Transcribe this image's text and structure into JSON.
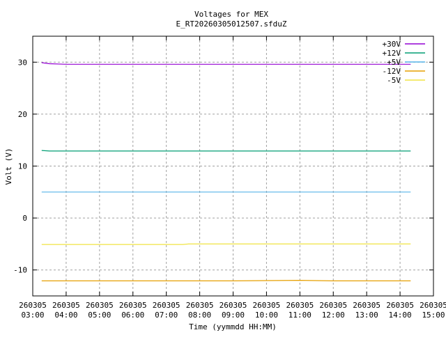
{
  "chart_data": {
    "type": "line",
    "title": "Voltages for MEX",
    "subtitle": "E_RT20260305012507.sfduZ",
    "xlabel": "Time (yymmdd HH:MM)",
    "ylabel": "Volt (V)",
    "xlim": [
      "260305 03:00",
      "260305 15:00"
    ],
    "ylim": [
      -15,
      35
    ],
    "x_ticks": [
      {
        "date": "260305",
        "time": "03:00"
      },
      {
        "date": "260305",
        "time": "04:00"
      },
      {
        "date": "260305",
        "time": "05:00"
      },
      {
        "date": "260305",
        "time": "06:00"
      },
      {
        "date": "260305",
        "time": "07:00"
      },
      {
        "date": "260305",
        "time": "08:00"
      },
      {
        "date": "260305",
        "time": "09:00"
      },
      {
        "date": "260305",
        "time": "10:00"
      },
      {
        "date": "260305",
        "time": "11:00"
      },
      {
        "date": "260305",
        "time": "12:00"
      },
      {
        "date": "260305",
        "time": "13:00"
      },
      {
        "date": "260305",
        "time": "14:00"
      },
      {
        "date": "260305",
        "time": "15:00"
      }
    ],
    "y_ticks": [
      "-10",
      "0",
      "10",
      "20",
      "30"
    ],
    "grid": true,
    "legend_position": "top-right",
    "series": [
      {
        "name": "+30V",
        "color": "#9400d3",
        "x": [
          "03:16",
          "03:30",
          "04:00",
          "06:00",
          "08:00",
          "10:00",
          "12:00",
          "14:19"
        ],
        "y": [
          29.9,
          29.7,
          29.6,
          29.6,
          29.6,
          29.6,
          29.6,
          29.6
        ]
      },
      {
        "name": "+12V",
        "color": "#009e73",
        "x": [
          "03:16",
          "03:30",
          "06:00",
          "09:00",
          "12:00",
          "14:19"
        ],
        "y": [
          13.0,
          12.9,
          12.9,
          12.9,
          12.9,
          12.9
        ]
      },
      {
        "name": "+5V",
        "color": "#56b4e9",
        "x": [
          "03:16",
          "06:00",
          "09:00",
          "12:00",
          "14:19"
        ],
        "y": [
          5.0,
          5.0,
          5.0,
          5.0,
          5.0
        ]
      },
      {
        "name": "-12V",
        "color": "#e69f00",
        "x": [
          "03:16",
          "06:00",
          "09:00",
          "11:00",
          "12:00",
          "14:19"
        ],
        "y": [
          -12.1,
          -12.1,
          -12.1,
          -12.0,
          -12.1,
          -12.1
        ]
      },
      {
        "name": "-5V",
        "color": "#f0e442",
        "x": [
          "03:16",
          "07:30",
          "07:40",
          "10:00",
          "12:00",
          "14:19"
        ],
        "y": [
          -5.1,
          -5.1,
          -5.0,
          -5.0,
          -5.0,
          -5.0
        ]
      }
    ]
  }
}
